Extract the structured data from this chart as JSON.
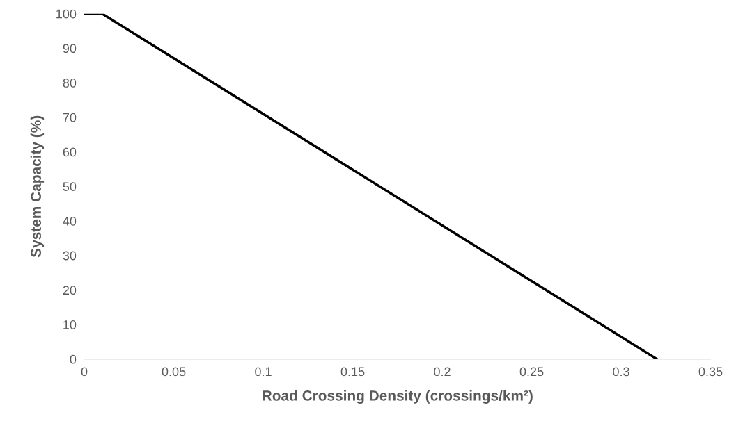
{
  "chart_data": {
    "type": "line",
    "xlabel": "Road Crossing Density (crossings/km²)",
    "ylabel": "System Capacity (%)",
    "x": [
      0,
      0.01,
      0.32
    ],
    "series": [
      {
        "color": "#000000",
        "values": [
          100,
          100,
          0
        ]
      }
    ],
    "xlim": [
      0,
      0.35
    ],
    "xticks": [
      0,
      0.05,
      0.1,
      0.15,
      0.2,
      0.25,
      0.3,
      0.35
    ],
    "ylim": [
      0,
      100
    ],
    "yticks": [
      0,
      10,
      20,
      30,
      40,
      50,
      60,
      70,
      80,
      90,
      100
    ],
    "grid": false,
    "marker": "none",
    "line_style": "solid"
  }
}
